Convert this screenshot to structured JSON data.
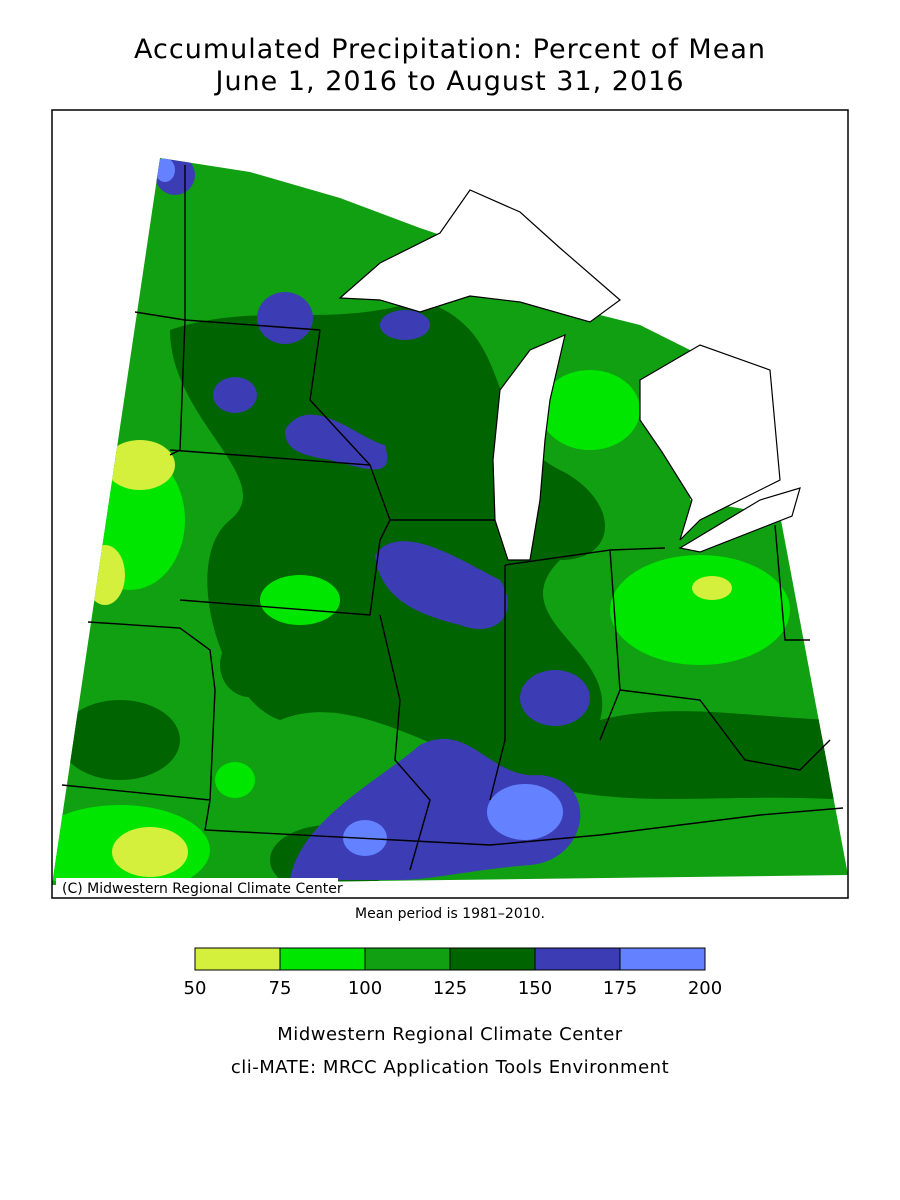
{
  "title": [
    "Accumulated Precipitation: Percent of Mean",
    "June 1, 2016 to August 31, 2016"
  ],
  "map": {
    "copyright": "(C) Midwestern Regional Climate Center",
    "note": "Mean period is 1981–2010."
  },
  "legend": {
    "bins": [
      50,
      75,
      100,
      125,
      150,
      175,
      200
    ],
    "colors": [
      "#d4f03c",
      "#00e600",
      "#11a011",
      "#006400",
      "#3c3cb4",
      "#6482ff"
    ]
  },
  "footer": [
    "Midwestern Regional Climate Center",
    "cli-MATE: MRCC Application Tools Environment"
  ]
}
